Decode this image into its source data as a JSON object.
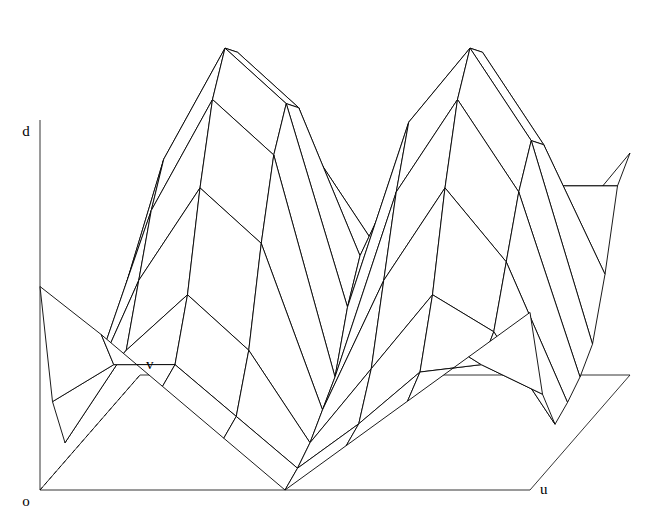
{
  "chart_data": {
    "type": "surface",
    "x_label": "u",
    "y_label": "v",
    "z_label": "d",
    "origin_label": "o",
    "tick_labels": false,
    "color": "#000000",
    "xlim": [
      0,
      1
    ],
    "ylim": [
      0,
      1
    ],
    "zlim": [
      0,
      1
    ],
    "x": [
      0,
      0.125,
      0.25,
      0.375,
      0.5,
      0.625,
      0.75,
      0.875,
      1
    ],
    "y": [
      0,
      0.125,
      0.25,
      0.375,
      0.5,
      0.625,
      0.75,
      0.875,
      1
    ],
    "z": [
      [
        0.55,
        0.42,
        0.28,
        0.14,
        0.0,
        0.12,
        0.24,
        0.36,
        0.48
      ],
      [
        0.2,
        0.3,
        0.3,
        0.16,
        0.02,
        0.14,
        0.28,
        0.3,
        0.22
      ],
      [
        0.05,
        0.3,
        0.45,
        0.3,
        0.05,
        0.25,
        0.45,
        0.35,
        0.1
      ],
      [
        0.08,
        0.45,
        0.7,
        0.55,
        0.1,
        0.45,
        0.7,
        0.5,
        0.12
      ],
      [
        0.12,
        0.6,
        0.9,
        0.75,
        0.15,
        0.65,
        0.9,
        0.65,
        0.15
      ],
      [
        0.15,
        0.7,
        1.0,
        0.85,
        0.3,
        0.8,
        1.0,
        0.75,
        0.2
      ],
      [
        0.15,
        0.65,
        0.95,
        0.8,
        0.4,
        0.75,
        0.95,
        0.7,
        0.35
      ],
      [
        0.12,
        0.5,
        0.75,
        0.65,
        0.4,
        0.6,
        0.75,
        0.55,
        0.55
      ],
      [
        0.1,
        0.35,
        0.5,
        0.45,
        0.35,
        0.45,
        0.5,
        0.4,
        0.6
      ]
    ]
  }
}
